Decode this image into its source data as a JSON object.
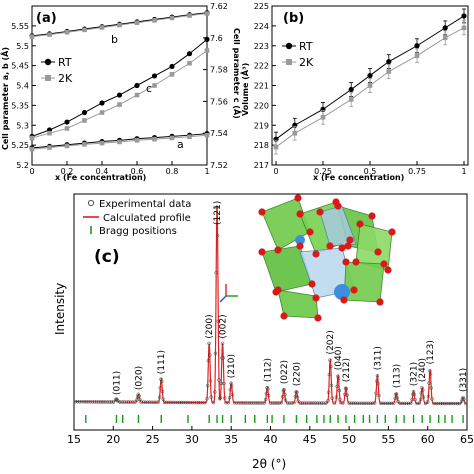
{
  "chart_data": [
    {
      "panel_label": "(a)",
      "type": "line",
      "x": [
        0,
        0.1,
        0.2,
        0.3,
        0.4,
        0.5,
        0.6,
        0.7,
        0.8,
        0.9,
        1
      ],
      "xlim": [
        0,
        1
      ],
      "xticks": [
        "0",
        "0.2",
        "0.4",
        "0.6",
        "0.8",
        "1"
      ],
      "xlabel": "x (Fe concentration)",
      "ylabel_left": "Cell parameter a, b (Å)",
      "ylim_left": [
        5.2,
        5.6
      ],
      "yticks_left": [
        "5.2",
        "5.25",
        "5.3",
        "5.35",
        "5.4",
        "5.45",
        "5.5",
        "5.55"
      ],
      "ylabel_right": "Cell parameter c (Å)",
      "ylim_right": [
        7.52,
        7.62
      ],
      "yticks_right": [
        "7.52",
        "7.54",
        "7.56",
        "7.58",
        "7.6",
        "7.62"
      ],
      "legend": [
        "RT",
        "2K"
      ],
      "legend_position": "upper-left",
      "curve_labels": [
        "b",
        "c",
        "a"
      ],
      "series": [
        {
          "name": "RT",
          "param": "b",
          "axis": "left",
          "values": [
            5.525,
            5.53,
            5.536,
            5.542,
            5.548,
            5.554,
            5.56,
            5.566,
            5.572,
            5.578,
            5.583
          ]
        },
        {
          "name": "2K",
          "param": "b",
          "axis": "left",
          "values": [
            5.523,
            5.528,
            5.534,
            5.54,
            5.546,
            5.552,
            5.558,
            5.564,
            5.57,
            5.576,
            5.581
          ]
        },
        {
          "name": "RT",
          "param": "c",
          "axis": "right",
          "values": [
            7.538,
            7.542,
            7.547,
            7.553,
            7.559,
            7.564,
            7.57,
            7.576,
            7.582,
            7.59,
            7.599
          ]
        },
        {
          "name": "2K",
          "param": "c",
          "axis": "right",
          "values": [
            7.537,
            7.54,
            7.543,
            7.548,
            7.553,
            7.558,
            7.564,
            7.57,
            7.577,
            7.584,
            7.592
          ]
        },
        {
          "name": "RT",
          "param": "a",
          "axis": "left",
          "values": [
            5.243,
            5.247,
            5.251,
            5.255,
            5.259,
            5.262,
            5.266,
            5.269,
            5.272,
            5.275,
            5.279
          ]
        },
        {
          "name": "2K",
          "param": "a",
          "axis": "left",
          "values": [
            5.24,
            5.244,
            5.248,
            5.252,
            5.255,
            5.258,
            5.262,
            5.265,
            5.268,
            5.271,
            5.275
          ]
        }
      ]
    },
    {
      "panel_label": "(b)",
      "type": "line",
      "x": [
        0,
        0.1,
        0.25,
        0.4,
        0.5,
        0.6,
        0.75,
        0.9,
        1
      ],
      "xlim": [
        0,
        1
      ],
      "xticks": [
        "0",
        "0.25",
        "0.5",
        "0.75",
        "1"
      ],
      "xlabel": "x (Fe concentration)",
      "ylabel": "Volume (Å³)",
      "ylim": [
        217,
        225
      ],
      "yticks": [
        "217",
        "218",
        "219",
        "220",
        "221",
        "222",
        "223",
        "224",
        "225"
      ],
      "legend": [
        "RT",
        "2K"
      ],
      "legend_position": "upper-left",
      "series": [
        {
          "name": "RT",
          "values": [
            218.3,
            219.0,
            219.8,
            220.8,
            221.5,
            222.2,
            223.0,
            223.9,
            224.5
          ],
          "error": [
            0.35,
            0.35,
            0.35,
            0.35,
            0.35,
            0.35,
            0.35,
            0.35,
            0.35
          ]
        },
        {
          "name": "2K",
          "values": [
            217.9,
            218.6,
            219.4,
            220.3,
            221.0,
            221.7,
            222.5,
            223.4,
            223.9
          ],
          "error": [
            0.35,
            0.35,
            0.35,
            0.35,
            0.35,
            0.35,
            0.35,
            0.35,
            0.35
          ]
        }
      ]
    },
    {
      "panel_label": "(c)",
      "type": "line",
      "xlim": [
        15,
        65
      ],
      "xticks": [
        "15",
        "20",
        "25",
        "30",
        "35",
        "40",
        "45",
        "50",
        "55",
        "60",
        "65"
      ],
      "xlabel": "2θ (°)",
      "ylabel": "Intensity",
      "legend": [
        "Experimental data",
        "Calculated profile",
        "Bragg positions"
      ],
      "peaks": [
        {
          "hkl": "(011)",
          "pos": 20.4,
          "h": 0.015
        },
        {
          "hkl": "(020)",
          "pos": 23.2,
          "h": 0.04
        },
        {
          "hkl": "(111)",
          "pos": 26.1,
          "h": 0.12
        },
        {
          "hkl": "(200)",
          "pos": 32.2,
          "h": 0.3
        },
        {
          "hkl": "(121)",
          "pos": 33.2,
          "h": 1.0
        },
        {
          "hkl": "(002)",
          "pos": 33.9,
          "h": 0.3
        },
        {
          "hkl": "(210)",
          "pos": 35.0,
          "h": 0.1
        },
        {
          "hkl": "(112)",
          "pos": 39.6,
          "h": 0.08
        },
        {
          "hkl": "(022)",
          "pos": 41.7,
          "h": 0.07
        },
        {
          "hkl": "(220)",
          "pos": 43.3,
          "h": 0.06
        },
        {
          "hkl": "(202)",
          "pos": 47.6,
          "h": 0.22
        },
        {
          "hkl": "(040)",
          "pos": 48.6,
          "h": 0.14
        },
        {
          "hkl": "(212)",
          "pos": 49.6,
          "h": 0.08
        },
        {
          "hkl": "(311)",
          "pos": 53.6,
          "h": 0.14
        },
        {
          "hkl": "(113)",
          "pos": 56.0,
          "h": 0.05
        },
        {
          "hkl": "(321)",
          "pos": 58.2,
          "h": 0.06
        },
        {
          "hkl": "(240)",
          "pos": 59.3,
          "h": 0.08
        },
        {
          "hkl": "(123)",
          "pos": 60.3,
          "h": 0.17
        },
        {
          "hkl": "(331)",
          "pos": 64.5,
          "h": 0.03
        }
      ],
      "bragg_positions": [
        16.5,
        20.4,
        21.2,
        23.2,
        26.1,
        29.5,
        32.2,
        33.2,
        33.9,
        35.0,
        36.8,
        38.0,
        39.6,
        40.2,
        41.7,
        43.3,
        44.6,
        45.9,
        46.8,
        47.6,
        48.6,
        49.6,
        50.7,
        51.8,
        52.6,
        53.6,
        54.6,
        56.0,
        57.0,
        58.2,
        59.3,
        60.3,
        61.4,
        62.2,
        63.1,
        64.5
      ]
    }
  ]
}
